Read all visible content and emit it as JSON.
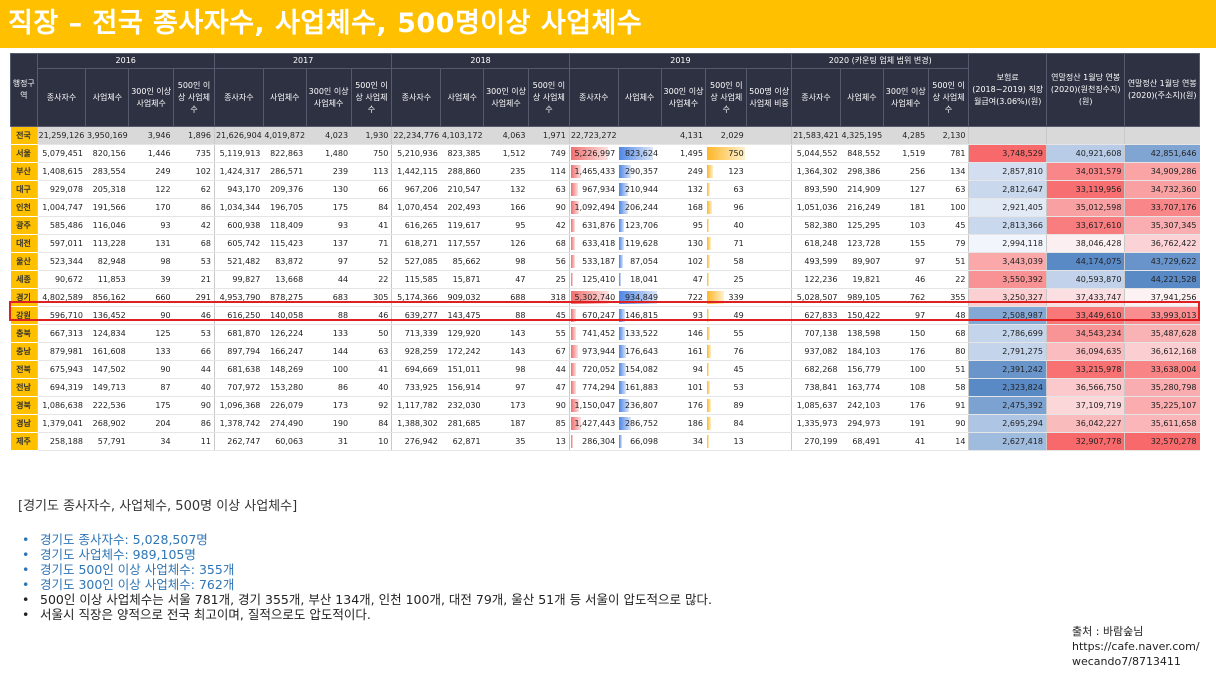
{
  "title": "직장 – 전국 종사자수, 사업체수, 500명이상 사업체수",
  "table": {
    "region_header": "행정구역",
    "year_headers": [
      "2016",
      "2017",
      "2018",
      "2019",
      "2020 (카운팅 업체 범위 변경)"
    ],
    "sub_headers": {
      "employees": "종사자수",
      "businesses": "사업체수",
      "over300": "300인 이상 사업체수",
      "over500": "500인 이상 사업체수",
      "ratio": "500명 이상 사업체 비중"
    },
    "extra_headers": [
      "보험료(2018~2019) 직장월급여(3.06%)(원)",
      "연말정산 1월당 연봉 (2020)(원천징수지)(원)",
      "연말정산 1월당 연봉 (2020)(주소지)(원)"
    ],
    "rows": [
      {
        "region": "전국",
        "total": true,
        "y2016": [
          "21,259,126",
          "3,950,169",
          "3,946",
          "1,896"
        ],
        "y2017": [
          "21,626,904",
          "4,019,872",
          "4,023",
          "1,930"
        ],
        "y2018": [
          "22,234,776",
          "4,103,172",
          "4,063",
          "1,971"
        ],
        "y2019": [
          "22,723,272",
          "",
          "4,131",
          "2,029",
          ""
        ],
        "y2020": [
          "21,583,421",
          "4,325,195",
          "4,285",
          "2,130"
        ],
        "extra": [
          "",
          "",
          ""
        ]
      },
      {
        "region": "서울",
        "y2016": [
          "5,079,451",
          "820,156",
          "1,446",
          "735"
        ],
        "y2017": [
          "5,119,913",
          "822,863",
          "1,480",
          "750"
        ],
        "y2018": [
          "5,210,936",
          "823,385",
          "1,512",
          "749"
        ],
        "y2019": [
          "5,226,997",
          "823,624",
          "1,495",
          "750",
          ""
        ],
        "y2020": [
          "5,044,552",
          "848,552",
          "1,519",
          "781"
        ],
        "extra": [
          "3,748,529",
          "40,921,608",
          "42,851,646"
        ]
      },
      {
        "region": "부산",
        "y2016": [
          "1,408,615",
          "283,554",
          "249",
          "102"
        ],
        "y2017": [
          "1,424,317",
          "286,571",
          "239",
          "113"
        ],
        "y2018": [
          "1,442,115",
          "288,860",
          "235",
          "114"
        ],
        "y2019": [
          "1,465,433",
          "290,357",
          "249",
          "123",
          ""
        ],
        "y2020": [
          "1,364,302",
          "298,386",
          "256",
          "134"
        ],
        "extra": [
          "2,857,810",
          "34,031,579",
          "34,909,286"
        ]
      },
      {
        "region": "대구",
        "y2016": [
          "929,078",
          "205,318",
          "122",
          "62"
        ],
        "y2017": [
          "943,170",
          "209,376",
          "130",
          "66"
        ],
        "y2018": [
          "967,206",
          "210,547",
          "132",
          "63"
        ],
        "y2019": [
          "967,934",
          "210,944",
          "132",
          "63",
          ""
        ],
        "y2020": [
          "893,590",
          "214,909",
          "127",
          "63"
        ],
        "extra": [
          "2,812,647",
          "33,119,956",
          "34,732,360"
        ]
      },
      {
        "region": "인천",
        "y2016": [
          "1,004,747",
          "191,566",
          "170",
          "86"
        ],
        "y2017": [
          "1,034,344",
          "196,705",
          "175",
          "84"
        ],
        "y2018": [
          "1,070,454",
          "202,493",
          "166",
          "90"
        ],
        "y2019": [
          "1,092,494",
          "206,244",
          "168",
          "96",
          ""
        ],
        "y2020": [
          "1,051,036",
          "216,249",
          "181",
          "100"
        ],
        "extra": [
          "2,921,405",
          "35,012,598",
          "33,707,176"
        ]
      },
      {
        "region": "광주",
        "y2016": [
          "585,486",
          "116,046",
          "93",
          "42"
        ],
        "y2017": [
          "600,938",
          "118,409",
          "93",
          "41"
        ],
        "y2018": [
          "616,265",
          "119,617",
          "95",
          "42"
        ],
        "y2019": [
          "631,876",
          "123,706",
          "95",
          "40",
          ""
        ],
        "y2020": [
          "582,380",
          "125,295",
          "103",
          "45"
        ],
        "extra": [
          "2,813,366",
          "33,617,610",
          "35,307,345"
        ]
      },
      {
        "region": "대전",
        "y2016": [
          "597,011",
          "113,228",
          "131",
          "68"
        ],
        "y2017": [
          "605,742",
          "115,423",
          "137",
          "71"
        ],
        "y2018": [
          "618,271",
          "117,557",
          "126",
          "68"
        ],
        "y2019": [
          "633,418",
          "119,628",
          "130",
          "71",
          ""
        ],
        "y2020": [
          "618,248",
          "123,728",
          "155",
          "79"
        ],
        "extra": [
          "2,994,118",
          "38,046,428",
          "36,762,422"
        ]
      },
      {
        "region": "울산",
        "y2016": [
          "523,344",
          "82,948",
          "98",
          "53"
        ],
        "y2017": [
          "521,482",
          "83,872",
          "97",
          "52"
        ],
        "y2018": [
          "527,085",
          "85,662",
          "98",
          "56"
        ],
        "y2019": [
          "533,187",
          "87,054",
          "102",
          "58",
          ""
        ],
        "y2020": [
          "493,599",
          "89,907",
          "97",
          "51"
        ],
        "extra": [
          "3,443,039",
          "44,174,075",
          "43,729,622"
        ]
      },
      {
        "region": "세종",
        "y2016": [
          "90,672",
          "11,853",
          "39",
          "21"
        ],
        "y2017": [
          "99,827",
          "13,668",
          "44",
          "22"
        ],
        "y2018": [
          "115,585",
          "15,871",
          "47",
          "25"
        ],
        "y2019": [
          "125,410",
          "18,041",
          "47",
          "25",
          ""
        ],
        "y2020": [
          "122,236",
          "19,821",
          "46",
          "22"
        ],
        "extra": [
          "3,550,392",
          "40,593,870",
          "44,221,528"
        ]
      },
      {
        "region": "경기",
        "y2016": [
          "4,802,589",
          "856,162",
          "660",
          "291"
        ],
        "y2017": [
          "4,953,790",
          "878,275",
          "683",
          "305"
        ],
        "y2018": [
          "5,174,366",
          "909,032",
          "688",
          "318"
        ],
        "y2019": [
          "5,302,740",
          "934,849",
          "722",
          "339",
          ""
        ],
        "y2020": [
          "5,028,507",
          "989,105",
          "762",
          "355"
        ],
        "extra": [
          "3,250,327",
          "37,433,747",
          "37,941,256"
        ]
      },
      {
        "region": "강원",
        "y2016": [
          "596,710",
          "136,452",
          "90",
          "46"
        ],
        "y2017": [
          "616,250",
          "140,058",
          "88",
          "46"
        ],
        "y2018": [
          "639,277",
          "143,475",
          "88",
          "45"
        ],
        "y2019": [
          "670,247",
          "146,815",
          "93",
          "49",
          ""
        ],
        "y2020": [
          "627,833",
          "150,422",
          "97",
          "48"
        ],
        "extra": [
          "2,508,987",
          "33,449,610",
          "33,993,013"
        ]
      },
      {
        "region": "충북",
        "y2016": [
          "667,313",
          "124,834",
          "125",
          "53"
        ],
        "y2017": [
          "681,870",
          "126,224",
          "133",
          "50"
        ],
        "y2018": [
          "713,339",
          "129,920",
          "143",
          "55"
        ],
        "y2019": [
          "741,452",
          "133,522",
          "146",
          "55",
          ""
        ],
        "y2020": [
          "707,138",
          "138,598",
          "150",
          "68"
        ],
        "extra": [
          "2,786,699",
          "34,543,234",
          "35,487,628"
        ]
      },
      {
        "region": "충남",
        "y2016": [
          "879,981",
          "161,608",
          "133",
          "66"
        ],
        "y2017": [
          "897,794",
          "166,247",
          "144",
          "63"
        ],
        "y2018": [
          "928,259",
          "172,242",
          "143",
          "67"
        ],
        "y2019": [
          "973,944",
          "176,643",
          "161",
          "76",
          ""
        ],
        "y2020": [
          "937,082",
          "184,103",
          "176",
          "80"
        ],
        "extra": [
          "2,791,275",
          "36,094,635",
          "36,612,168"
        ]
      },
      {
        "region": "전북",
        "y2016": [
          "675,943",
          "147,502",
          "90",
          "44"
        ],
        "y2017": [
          "681,638",
          "148,269",
          "100",
          "41"
        ],
        "y2018": [
          "694,669",
          "151,011",
          "98",
          "44"
        ],
        "y2019": [
          "720,052",
          "154,082",
          "94",
          "45",
          ""
        ],
        "y2020": [
          "682,268",
          "156,779",
          "100",
          "51"
        ],
        "extra": [
          "2,391,242",
          "33,215,978",
          "33,638,004"
        ]
      },
      {
        "region": "전남",
        "y2016": [
          "694,319",
          "149,713",
          "87",
          "40"
        ],
        "y2017": [
          "707,972",
          "153,280",
          "86",
          "40"
        ],
        "y2018": [
          "733,925",
          "156,914",
          "97",
          "47"
        ],
        "y2019": [
          "774,294",
          "161,883",
          "101",
          "53",
          ""
        ],
        "y2020": [
          "738,841",
          "163,774",
          "108",
          "58"
        ],
        "extra": [
          "2,323,824",
          "36,566,750",
          "35,280,798"
        ]
      },
      {
        "region": "경북",
        "y2016": [
          "1,086,638",
          "222,536",
          "175",
          "90"
        ],
        "y2017": [
          "1,096,368",
          "226,079",
          "173",
          "92"
        ],
        "y2018": [
          "1,117,782",
          "232,030",
          "173",
          "90"
        ],
        "y2019": [
          "1,150,047",
          "236,807",
          "176",
          "89",
          ""
        ],
        "y2020": [
          "1,085,637",
          "242,103",
          "176",
          "91"
        ],
        "extra": [
          "2,475,392",
          "37,109,719",
          "35,225,107"
        ]
      },
      {
        "region": "경남",
        "y2016": [
          "1,379,041",
          "268,902",
          "204",
          "86"
        ],
        "y2017": [
          "1,378,742",
          "274,490",
          "190",
          "84"
        ],
        "y2018": [
          "1,388,302",
          "281,685",
          "187",
          "85"
        ],
        "y2019": [
          "1,427,443",
          "286,752",
          "186",
          "84",
          ""
        ],
        "y2020": [
          "1,335,973",
          "294,973",
          "191",
          "90"
        ],
        "extra": [
          "2,695,294",
          "36,042,227",
          "35,611,658"
        ]
      },
      {
        "region": "제주",
        "y2016": [
          "258,188",
          "57,791",
          "34",
          "11"
        ],
        "y2017": [
          "262,747",
          "60,063",
          "31",
          "10"
        ],
        "y2018": [
          "276,942",
          "62,871",
          "35",
          "13"
        ],
        "y2019": [
          "286,304",
          "66,098",
          "34",
          "13",
          ""
        ],
        "y2020": [
          "270,199",
          "68,491",
          "41",
          "14"
        ],
        "extra": [
          "2,627,418",
          "32,907,778",
          "32,570,278"
        ]
      }
    ]
  },
  "heat_colors": {
    "red": "#F8696B",
    "white": "#FCFCFF",
    "blue": "#5A8AC6",
    "bar_red": "#F07070",
    "bar_blue": "#4F86E4",
    "bar_gold": "#FFB628",
    "highlight": "#E02020",
    "title_bg": "#FFC000",
    "header_bg": "#2E3142"
  },
  "notes": {
    "heading": "[경기도 종사자수, 사업체수, 500명 이상 사업체수]",
    "items": [
      {
        "text": "경기도 종사자수: 5,028,507명",
        "style": "blue"
      },
      {
        "text": "경기도 사업체수: 989,105명",
        "style": "blue"
      },
      {
        "text": "경기도 500인 이상 사업체수: 355개",
        "style": "blue"
      },
      {
        "text": "경기도 300인 이상 사업체수: 762개",
        "style": "blue"
      },
      {
        "text": "500인 이상 사업체수는 서울 781개, 경기 355개, 부산 134개, 인천 100개, 대전 79개, 울산 51개 등 서울이 압도적으로 많다.",
        "style": "black"
      },
      {
        "text": "서울시 직장은 양적으로 전국 최고이며, 질적으로도 압도적이다.",
        "style": "black"
      }
    ]
  },
  "source": {
    "line1": "출처 : 바람숲님",
    "line2": "https://cafe.naver.com/",
    "line3": "wecando7/8713411"
  }
}
